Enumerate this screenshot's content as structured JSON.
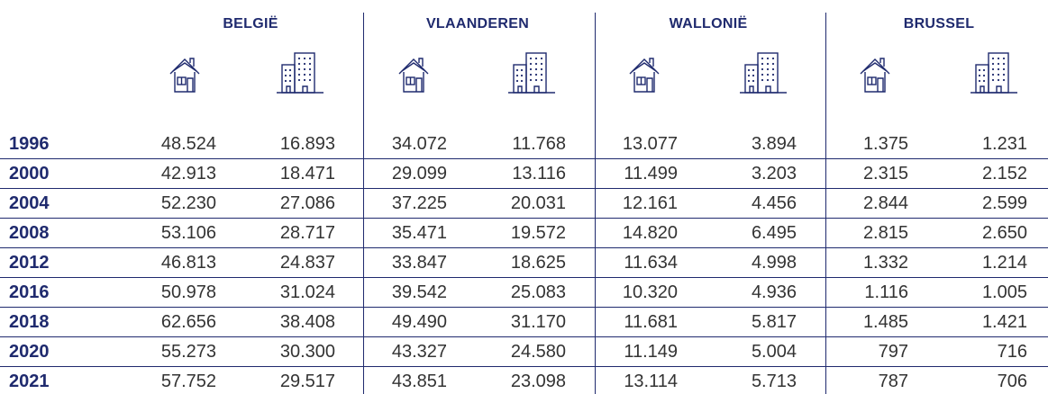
{
  "header": {
    "groups": [
      "BELGIË",
      "VLAANDEREN",
      "WALLONIË",
      "BRUSSEL"
    ]
  },
  "rows": [
    {
      "year": "1996",
      "values": [
        "48.524",
        "16.893",
        "34.072",
        "11.768",
        "13.077",
        "3.894",
        "1.375",
        "1.231"
      ]
    },
    {
      "year": "2000",
      "values": [
        "42.913",
        "18.471",
        "29.099",
        "13.116",
        "11.499",
        "3.203",
        "2.315",
        "2.152"
      ]
    },
    {
      "year": "2004",
      "values": [
        "52.230",
        "27.086",
        "37.225",
        "20.031",
        "12.161",
        "4.456",
        "2.844",
        "2.599"
      ]
    },
    {
      "year": "2008",
      "values": [
        "53.106",
        "28.717",
        "35.471",
        "19.572",
        "14.820",
        "6.495",
        "2.815",
        "2.650"
      ]
    },
    {
      "year": "2012",
      "values": [
        "46.813",
        "24.837",
        "33.847",
        "18.625",
        "11.634",
        "4.998",
        "1.332",
        "1.214"
      ]
    },
    {
      "year": "2016",
      "values": [
        "50.978",
        "31.024",
        "39.542",
        "25.083",
        "10.320",
        "4.936",
        "1.116",
        "1.005"
      ]
    },
    {
      "year": "2018",
      "values": [
        "62.656",
        "38.408",
        "49.490",
        "31.170",
        "11.681",
        "5.817",
        "1.485",
        "1.421"
      ]
    },
    {
      "year": "2020",
      "values": [
        "55.273",
        "30.300",
        "43.327",
        "24.580",
        "11.149",
        "5.004",
        "797",
        "716"
      ]
    },
    {
      "year": "2021",
      "values": [
        "57.752",
        "29.517",
        "43.851",
        "23.098",
        "13.114",
        "5.713",
        "787",
        "706"
      ]
    }
  ]
}
